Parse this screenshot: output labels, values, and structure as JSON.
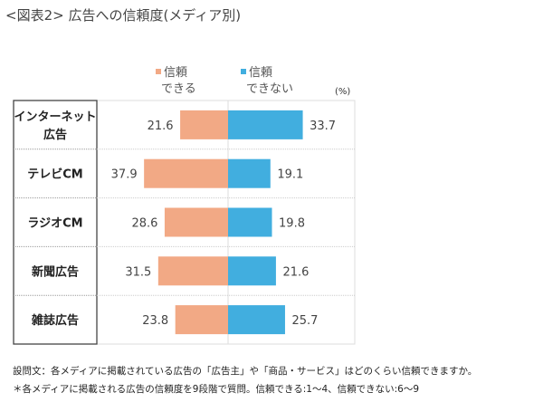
{
  "title": "<図表2> 広告への信頼度(メディア別)",
  "chart_data": {
    "type": "bar",
    "orientation": "horizontal-diverging",
    "unit_label": "(%)",
    "categories": [
      [
        "インターネット",
        "広告"
      ],
      [
        "テレビCM"
      ],
      [
        "ラジオCM"
      ],
      [
        "新聞広告"
      ],
      [
        "雑誌広告"
      ]
    ],
    "series": [
      {
        "name": [
          "信頼",
          "できる"
        ],
        "color": "#F2A985",
        "direction": "left",
        "values": [
          21.6,
          37.9,
          28.6,
          31.5,
          23.8
        ]
      },
      {
        "name": [
          "信頼",
          "できない"
        ],
        "color": "#41AEDF",
        "direction": "right",
        "values": [
          33.7,
          19.1,
          19.8,
          21.6,
          25.7
        ]
      }
    ],
    "legend_position": "top"
  },
  "notes": [
    "設問文：各メディアに掲載されている広告の「広告主」や「商品・サービス」はどのくらい信頼できますか。",
    "＊各メディアに掲載される広告の信頼度を9段階で質問。信頼できる:1～4、信頼できない:6～9"
  ]
}
